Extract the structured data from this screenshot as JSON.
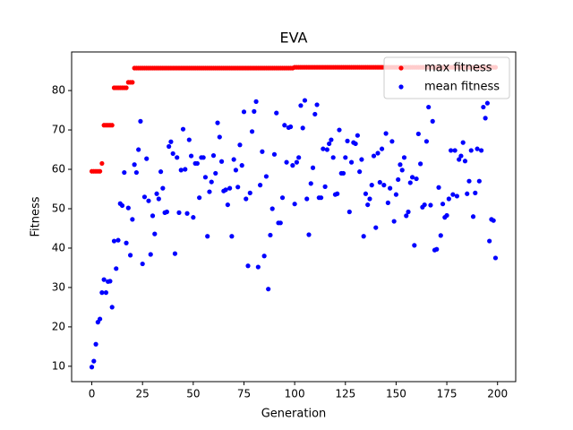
{
  "chart_data": {
    "type": "scatter",
    "title": "EVA",
    "x_label": "Generation",
    "y_label": "Fitness",
    "xlim": [
      -9.95,
      208.95
    ],
    "ylim": [
      6.1,
      89.8
    ],
    "xticks": [
      0,
      25,
      50,
      75,
      100,
      125,
      150,
      175,
      200
    ],
    "yticks": [
      10,
      20,
      30,
      40,
      50,
      60,
      70,
      80
    ],
    "legend": "upper right",
    "series": [
      {
        "name": "max fitness",
        "color": "#ff0000",
        "values": [
          59.5,
          59.5,
          59.5,
          59.5,
          59.5,
          61.5,
          71.2,
          71.2,
          71.2,
          71.2,
          71.2,
          80.7,
          80.7,
          80.7,
          80.7,
          80.7,
          80.7,
          80.7,
          82.1,
          82.1,
          82.1,
          85.7,
          85.7,
          85.7,
          85.7,
          85.7,
          85.7,
          85.7,
          85.7,
          85.7,
          85.7,
          85.7,
          85.7,
          85.7,
          85.7,
          85.7,
          85.7,
          85.7,
          85.7,
          85.7,
          85.7,
          85.7,
          85.7,
          85.7,
          85.7,
          85.7,
          85.7,
          85.7,
          85.7,
          85.7,
          85.7,
          85.7,
          85.7,
          85.7,
          85.7,
          85.7,
          85.7,
          85.7,
          85.7,
          85.7,
          85.7,
          85.7,
          85.7,
          85.7,
          85.7,
          85.7,
          85.7,
          85.7,
          85.7,
          85.7,
          85.7,
          85.7,
          85.7,
          85.7,
          85.7,
          85.7,
          85.7,
          85.7,
          85.7,
          85.7,
          85.7,
          85.7,
          85.7,
          85.7,
          85.7,
          85.7,
          85.7,
          85.7,
          85.7,
          85.7,
          85.7,
          85.7,
          85.7,
          85.7,
          85.7,
          85.7,
          85.7,
          85.7,
          85.7,
          85.7,
          85.9,
          85.9,
          85.9,
          85.9,
          85.9,
          85.9,
          85.9,
          85.9,
          85.9,
          85.9,
          85.9,
          85.9,
          85.9,
          85.9,
          85.9,
          85.9,
          85.9,
          85.9,
          85.9,
          85.9,
          85.9,
          85.9,
          85.9,
          85.9,
          85.9,
          85.9,
          85.9,
          85.9,
          85.9,
          85.9,
          85.9,
          85.9,
          85.9,
          85.9,
          85.9,
          85.9,
          85.9,
          85.9,
          85.9,
          85.9,
          85.9,
          85.9,
          85.9,
          85.9,
          85.9,
          85.9,
          85.9,
          85.9,
          85.9,
          85.9,
          85.9,
          85.9,
          85.9,
          85.9,
          85.9,
          85.9,
          85.9,
          85.9,
          85.9,
          85.9,
          85.9,
          85.9,
          85.9,
          85.9,
          85.9,
          85.9,
          85.9,
          85.9,
          85.9,
          85.9,
          85.9,
          85.9,
          85.9,
          85.9,
          85.9,
          85.9,
          85.9,
          85.9,
          85.9,
          85.9,
          85.9,
          85.9,
          85.9,
          85.9,
          85.9,
          85.9,
          85.9,
          85.9,
          85.9,
          85.9,
          85.9,
          85.9,
          85.9,
          85.9,
          85.9,
          85.9,
          85.9,
          85.9,
          85.9,
          85.9
        ]
      },
      {
        "name": "mean fitness",
        "color": "#0000ff",
        "values": [
          9.8,
          11.3,
          15.6,
          21.2,
          22,
          28.7,
          32,
          28.7,
          31.5,
          31.6,
          25,
          41.8,
          34.8,
          42,
          51.3,
          50.8,
          59.2,
          41.3,
          50.2,
          38.2,
          47.3,
          61.2,
          59.2,
          65,
          72.2,
          36,
          53,
          62.7,
          52,
          38.4,
          48.2,
          43.6,
          53.8,
          52.5,
          59.4,
          55.2,
          49,
          49.2,
          65.8,
          67,
          64,
          38.6,
          63,
          49,
          59.8,
          70.2,
          60,
          48.8,
          67.5,
          63.4,
          47.8,
          61.5,
          61.5,
          52.8,
          63,
          63,
          58,
          43,
          54.3,
          56.8,
          63.5,
          59,
          71.8,
          68.2,
          62,
          54.5,
          54.8,
          51,
          55.2,
          43,
          62.5,
          59.8,
          55.5,
          66.2,
          61,
          74.6,
          52.5,
          35.5,
          54,
          69.6,
          74.7,
          77.2,
          35.2,
          56,
          64.5,
          38,
          58.2,
          29.6,
          43.3,
          50,
          63.8,
          74.3,
          46.4,
          46.4,
          52.8,
          71.2,
          61.8,
          70.6,
          70.8,
          61,
          51.2,
          61.8,
          63,
          76.2,
          70.5,
          77.5,
          52.5,
          43.4,
          56.4,
          60.4,
          74,
          76.4,
          52.8,
          52.8,
          65.2,
          55.6,
          65,
          66.5,
          67.5,
          63,
          53.6,
          53.8,
          70,
          59,
          59,
          63,
          67.2,
          49.2,
          61.8,
          66.8,
          66.5,
          68.6,
          59.4,
          62.5,
          43,
          53.8,
          51,
          52.5,
          56,
          63.4,
          45.2,
          64.1,
          56.7,
          65.2,
          56,
          69.1,
          51.5,
          55.2,
          67.1,
          46.8,
          53.6,
          57.4,
          61.2,
          59.8,
          63,
          48.2,
          49.2,
          56.6,
          58,
          40.7,
          57.6,
          69,
          61.4,
          50.4,
          51,
          67.1,
          75.8,
          50.9,
          72.2,
          39.5,
          39.7,
          55.4,
          43.2,
          51.2,
          47.8,
          48.3,
          52.5,
          64.8,
          53.6,
          64.8,
          53.2,
          62.5,
          63.4,
          66.8,
          62.1,
          53.8,
          57,
          64.8,
          48,
          54,
          65.2,
          57,
          64.8,
          75.8,
          73,
          76.8,
          41.8,
          47.3,
          47,
          37.5
        ]
      }
    ]
  }
}
